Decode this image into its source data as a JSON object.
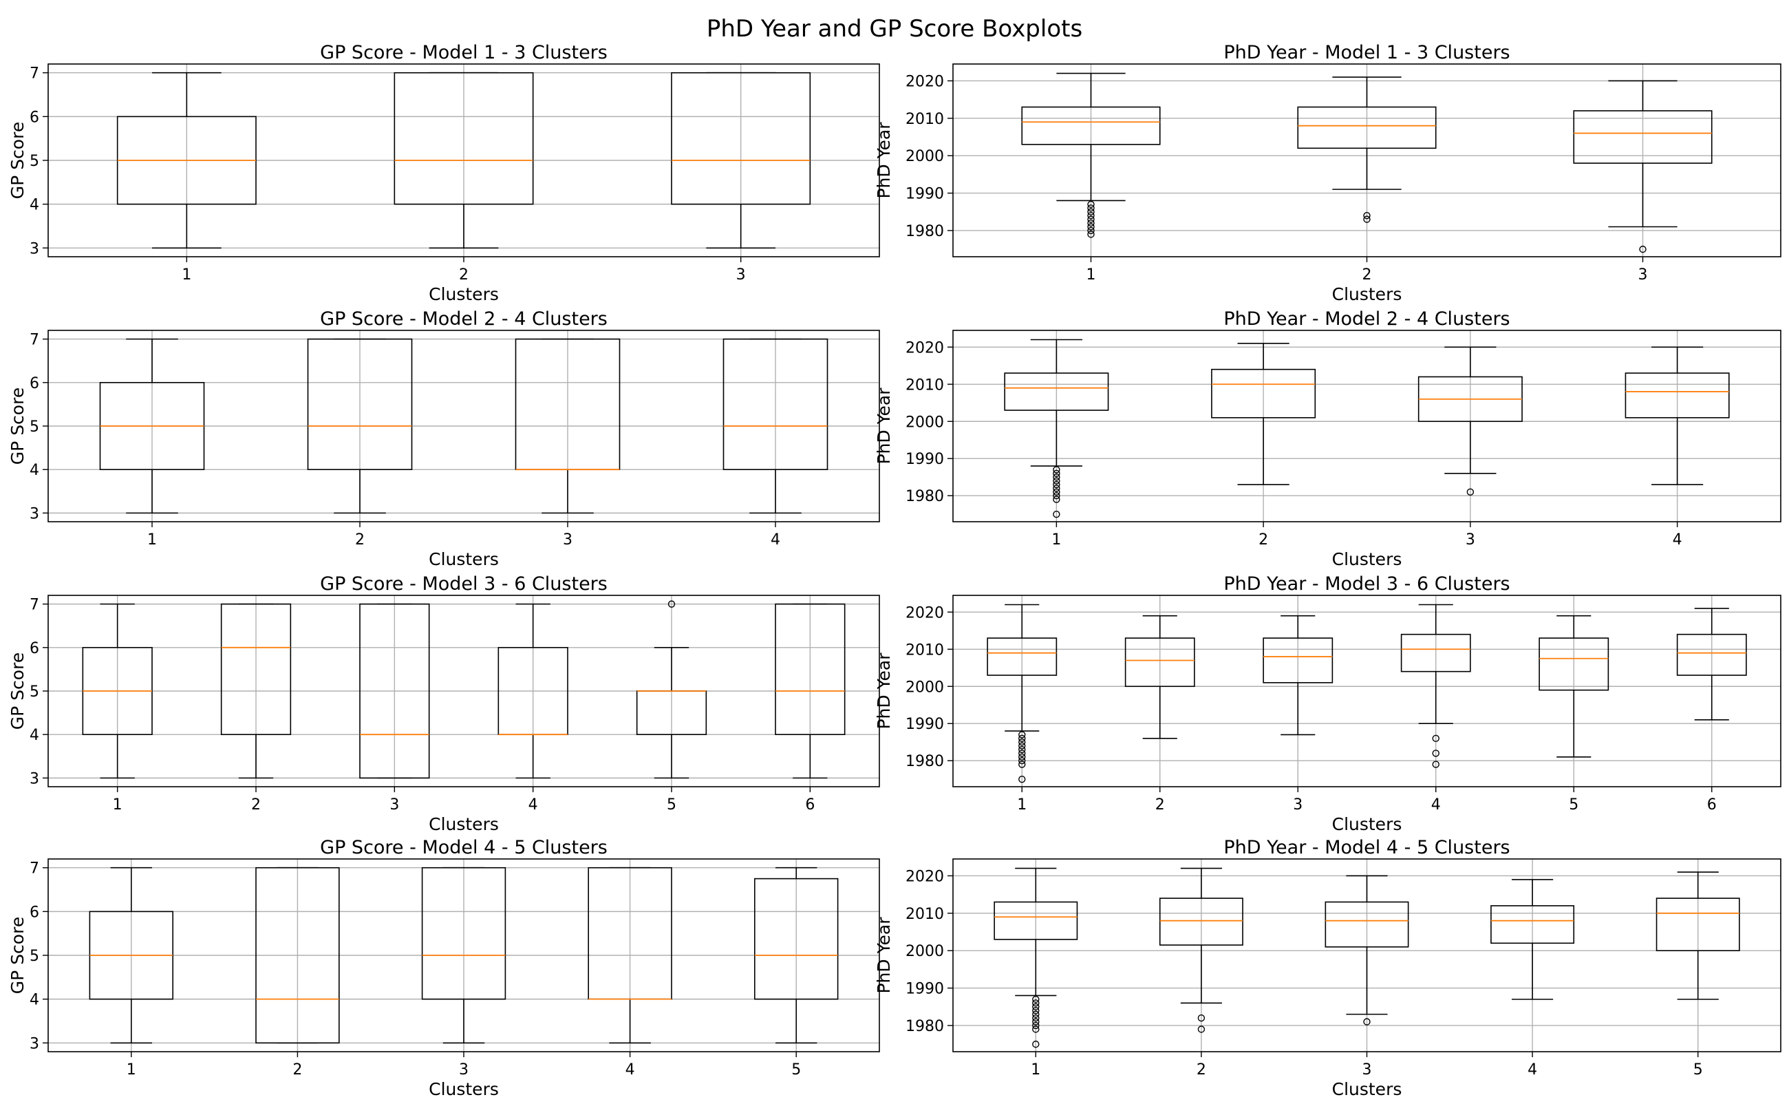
{
  "figure": {
    "title": "PhD Year and GP Score Boxplots"
  },
  "chart_data": [
    {
      "type": "boxplot",
      "title": "GP Score - Model 1 - 3 Clusters",
      "xlabel": "Clusters",
      "ylabel": "GP Score",
      "ylim": [
        2.8,
        7.2
      ],
      "yticks": [
        3,
        4,
        5,
        6,
        7
      ],
      "categories": [
        "1",
        "2",
        "3"
      ],
      "boxes": [
        {
          "whislo": 3,
          "q1": 4,
          "med": 5,
          "q3": 6,
          "whishi": 7,
          "fliers": []
        },
        {
          "whislo": 3,
          "q1": 4,
          "med": 5,
          "q3": 7,
          "whishi": 7,
          "fliers": []
        },
        {
          "whislo": 3,
          "q1": 4,
          "med": 5,
          "q3": 7,
          "whishi": 7,
          "fliers": []
        }
      ],
      "grid": true
    },
    {
      "type": "boxplot",
      "title": "PhD Year - Model 1 - 3 Clusters",
      "xlabel": "Clusters",
      "ylabel": "PhD Year",
      "ylim": [
        1973,
        2024.5
      ],
      "yticks": [
        1980,
        1990,
        2000,
        2010,
        2020
      ],
      "categories": [
        "1",
        "2",
        "3"
      ],
      "boxes": [
        {
          "whislo": 1988,
          "q1": 2003,
          "med": 2009,
          "q3": 2013,
          "whishi": 2022,
          "fliers": [
            1987,
            1986,
            1985,
            1984,
            1983,
            1982,
            1981,
            1980,
            1979
          ]
        },
        {
          "whislo": 1991,
          "q1": 2002,
          "med": 2008,
          "q3": 2013,
          "whishi": 2021,
          "fliers": [
            1984,
            1983
          ]
        },
        {
          "whislo": 1981,
          "q1": 1998,
          "med": 2006,
          "q3": 2012,
          "whishi": 2020,
          "fliers": [
            1975
          ]
        }
      ],
      "grid": true
    },
    {
      "type": "boxplot",
      "title": "GP Score - Model 2 - 4 Clusters",
      "xlabel": "Clusters",
      "ylabel": "GP Score",
      "ylim": [
        2.8,
        7.2
      ],
      "yticks": [
        3,
        4,
        5,
        6,
        7
      ],
      "categories": [
        "1",
        "2",
        "3",
        "4"
      ],
      "boxes": [
        {
          "whislo": 3,
          "q1": 4,
          "med": 5,
          "q3": 6,
          "whishi": 7,
          "fliers": []
        },
        {
          "whislo": 3,
          "q1": 4,
          "med": 5,
          "q3": 7,
          "whishi": 7,
          "fliers": []
        },
        {
          "whislo": 3,
          "q1": 4,
          "med": 4,
          "q3": 7,
          "whishi": 7,
          "fliers": []
        },
        {
          "whislo": 3,
          "q1": 4,
          "med": 5,
          "q3": 7,
          "whishi": 7,
          "fliers": []
        }
      ],
      "grid": true
    },
    {
      "type": "boxplot",
      "title": "PhD Year - Model 2 - 4 Clusters",
      "xlabel": "Clusters",
      "ylabel": "PhD Year",
      "ylim": [
        1973,
        2024.5
      ],
      "yticks": [
        1980,
        1990,
        2000,
        2010,
        2020
      ],
      "categories": [
        "1",
        "2",
        "3",
        "4"
      ],
      "boxes": [
        {
          "whislo": 1988,
          "q1": 2003,
          "med": 2009,
          "q3": 2013,
          "whishi": 2022,
          "fliers": [
            1987,
            1986,
            1985,
            1984,
            1983,
            1982,
            1981,
            1980,
            1979,
            1975
          ]
        },
        {
          "whislo": 1983,
          "q1": 2001,
          "med": 2010,
          "q3": 2014,
          "whishi": 2021,
          "fliers": []
        },
        {
          "whislo": 1986,
          "q1": 2000,
          "med": 2006,
          "q3": 2012,
          "whishi": 2020,
          "fliers": [
            1981
          ]
        },
        {
          "whislo": 1983,
          "q1": 2001,
          "med": 2008,
          "q3": 2013,
          "whishi": 2020,
          "fliers": []
        }
      ],
      "grid": true
    },
    {
      "type": "boxplot",
      "title": "GP Score - Model 3 - 6 Clusters",
      "xlabel": "Clusters",
      "ylabel": "GP Score",
      "ylim": [
        2.8,
        7.2
      ],
      "yticks": [
        3,
        4,
        5,
        6,
        7
      ],
      "categories": [
        "1",
        "2",
        "3",
        "4",
        "5",
        "6"
      ],
      "boxes": [
        {
          "whislo": 3,
          "q1": 4,
          "med": 5,
          "q3": 6,
          "whishi": 7,
          "fliers": []
        },
        {
          "whislo": 3,
          "q1": 4,
          "med": 6,
          "q3": 7,
          "whishi": 7,
          "fliers": []
        },
        {
          "whislo": 3,
          "q1": 3,
          "med": 4,
          "q3": 7,
          "whishi": 7,
          "fliers": []
        },
        {
          "whislo": 3,
          "q1": 4,
          "med": 4,
          "q3": 6,
          "whishi": 7,
          "fliers": []
        },
        {
          "whislo": 3,
          "q1": 4,
          "med": 5,
          "q3": 5,
          "whishi": 6,
          "fliers": [
            7
          ]
        },
        {
          "whislo": 3,
          "q1": 4,
          "med": 5,
          "q3": 7,
          "whishi": 7,
          "fliers": []
        }
      ],
      "grid": true
    },
    {
      "type": "boxplot",
      "title": "PhD Year - Model 3 - 6 Clusters",
      "xlabel": "Clusters",
      "ylabel": "PhD Year",
      "ylim": [
        1973,
        2024.5
      ],
      "yticks": [
        1980,
        1990,
        2000,
        2010,
        2020
      ],
      "categories": [
        "1",
        "2",
        "3",
        "4",
        "5",
        "6"
      ],
      "boxes": [
        {
          "whislo": 1988,
          "q1": 2003,
          "med": 2009,
          "q3": 2013,
          "whishi": 2022,
          "fliers": [
            1987,
            1986,
            1985,
            1984,
            1983,
            1982,
            1981,
            1980,
            1979,
            1975
          ]
        },
        {
          "whislo": 1986,
          "q1": 2000,
          "med": 2007,
          "q3": 2013,
          "whishi": 2019,
          "fliers": []
        },
        {
          "whislo": 1987,
          "q1": 2001,
          "med": 2008,
          "q3": 2013,
          "whishi": 2019,
          "fliers": []
        },
        {
          "whislo": 1990,
          "q1": 2004,
          "med": 2010,
          "q3": 2014,
          "whishi": 2022,
          "fliers": [
            1986,
            1982,
            1979
          ]
        },
        {
          "whislo": 1981,
          "q1": 1999,
          "med": 2007.5,
          "q3": 2013,
          "whishi": 2019,
          "fliers": []
        },
        {
          "whislo": 1991,
          "q1": 2003,
          "med": 2009,
          "q3": 2014,
          "whishi": 2021,
          "fliers": []
        }
      ],
      "grid": true
    },
    {
      "type": "boxplot",
      "title": "GP Score - Model 4 - 5 Clusters",
      "xlabel": "Clusters",
      "ylabel": "GP Score",
      "ylim": [
        2.8,
        7.2
      ],
      "yticks": [
        3,
        4,
        5,
        6,
        7
      ],
      "categories": [
        "1",
        "2",
        "3",
        "4",
        "5"
      ],
      "boxes": [
        {
          "whislo": 3,
          "q1": 4,
          "med": 5,
          "q3": 6,
          "whishi": 7,
          "fliers": []
        },
        {
          "whislo": 3,
          "q1": 3,
          "med": 4,
          "q3": 7,
          "whishi": 7,
          "fliers": []
        },
        {
          "whislo": 3,
          "q1": 4,
          "med": 5,
          "q3": 7,
          "whishi": 7,
          "fliers": []
        },
        {
          "whislo": 3,
          "q1": 4,
          "med": 4,
          "q3": 7,
          "whishi": 7,
          "fliers": []
        },
        {
          "whislo": 3,
          "q1": 4,
          "med": 5,
          "q3": 6.75,
          "whishi": 7,
          "fliers": []
        }
      ],
      "grid": true
    },
    {
      "type": "boxplot",
      "title": "PhD Year - Model 4 - 5 Clusters",
      "xlabel": "Clusters",
      "ylabel": "PhD Year",
      "ylim": [
        1973,
        2024.5
      ],
      "yticks": [
        1980,
        1990,
        2000,
        2010,
        2020
      ],
      "categories": [
        "1",
        "2",
        "3",
        "4",
        "5"
      ],
      "boxes": [
        {
          "whislo": 1988,
          "q1": 2003,
          "med": 2009,
          "q3": 2013,
          "whishi": 2022,
          "fliers": [
            1987,
            1986,
            1985,
            1984,
            1983,
            1982,
            1981,
            1980,
            1979,
            1975
          ]
        },
        {
          "whislo": 1986,
          "q1": 2001.5,
          "med": 2008,
          "q3": 2014,
          "whishi": 2022,
          "fliers": [
            1982,
            1979
          ]
        },
        {
          "whislo": 1983,
          "q1": 2001,
          "med": 2008,
          "q3": 2013,
          "whishi": 2020,
          "fliers": [
            1981
          ]
        },
        {
          "whislo": 1987,
          "q1": 2002,
          "med": 2008,
          "q3": 2012,
          "whishi": 2019,
          "fliers": []
        },
        {
          "whislo": 1987,
          "q1": 2000,
          "med": 2010,
          "q3": 2014,
          "whishi": 2021,
          "fliers": []
        }
      ],
      "grid": true
    }
  ],
  "colors": {
    "box": "#000000",
    "median": "#ff7f0e",
    "grid": "#b0b0b0",
    "flier": "#000000"
  }
}
